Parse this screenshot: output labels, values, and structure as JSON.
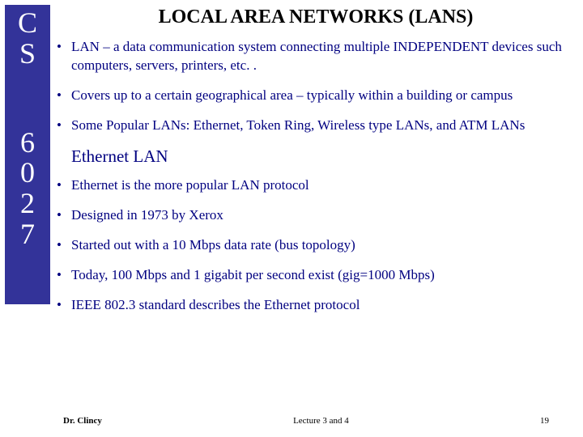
{
  "sidebar": {
    "top": [
      "C",
      "S"
    ],
    "bottom": [
      "6",
      "0",
      "2",
      "7"
    ],
    "bg_color": "#333399",
    "text_color": "#ffffff"
  },
  "title": "LOCAL AREA NETWORKS (LANS)",
  "bullets_top": [
    "LAN – a data communication system connecting multiple INDEPENDENT devices such computers, servers, printers, etc. .",
    "Covers up to a certain geographical area – typically within a building or campus",
    "Some Popular LANs: Ethernet, Token Ring, Wireless type LANs, and ATM LANs"
  ],
  "subheading": "Ethernet LAN",
  "bullets_bottom": [
    "Ethernet is the more popular LAN protocol",
    "Designed in 1973 by Xerox",
    "Started out with a 10 Mbps data rate (bus topology)",
    "Today, 100 Mbps and 1 gigabit per second exist (gig=1000 Mbps)",
    "IEEE 802.3 standard describes the Ethernet protocol"
  ],
  "footer": {
    "author": "Dr. Clincy",
    "lecture": "Lecture 3 and 4",
    "page": "19"
  },
  "colors": {
    "title_color": "#000000",
    "body_text_color": "#000080",
    "background": "#ffffff"
  }
}
